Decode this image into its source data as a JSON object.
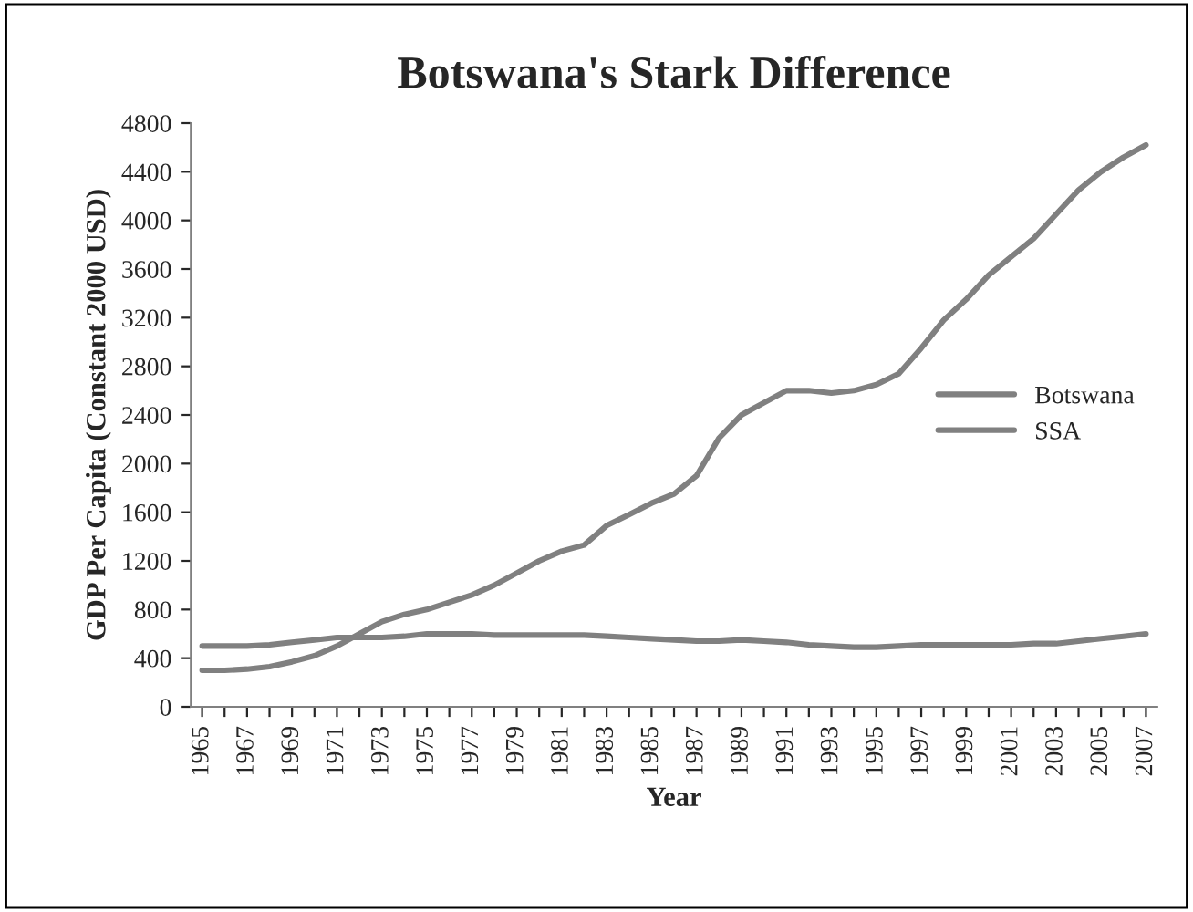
{
  "chart_data": {
    "type": "line",
    "title": "Botswana's Stark Difference",
    "xlabel": "Year",
    "ylabel": "GDP Per Capita (Constant 2000 USD)",
    "categories": [
      "1965",
      null,
      "1967",
      null,
      "1969",
      null,
      "1971",
      null,
      "1973",
      null,
      "1975",
      null,
      "1977",
      null,
      "1979",
      null,
      "1981",
      null,
      "1983",
      null,
      "1985",
      null,
      "1987",
      null,
      "1989",
      null,
      "1991",
      null,
      "1993",
      null,
      "1995",
      null,
      "1997",
      null,
      "1999",
      null,
      "2001",
      null,
      "2003",
      null,
      "2005",
      null,
      "2007"
    ],
    "series": [
      {
        "name": "Botswana",
        "color": "#808080",
        "values": [
          300,
          300,
          310,
          330,
          370,
          420,
          500,
          600,
          700,
          760,
          800,
          860,
          920,
          1000,
          1100,
          1200,
          1280,
          1330,
          1490,
          1580,
          1675,
          1750,
          1900,
          2210,
          2400,
          2500,
          2600,
          2600,
          2580,
          2600,
          2650,
          2740,
          2950,
          3180,
          3350,
          3550,
          3700,
          3850,
          4050,
          4250,
          4400,
          4520,
          4620
        ]
      },
      {
        "name": "SSA",
        "color": "#808080",
        "values": [
          500,
          500,
          500,
          510,
          530,
          550,
          570,
          570,
          570,
          580,
          600,
          600,
          600,
          590,
          590,
          590,
          590,
          590,
          580,
          570,
          560,
          550,
          540,
          540,
          550,
          540,
          530,
          510,
          500,
          490,
          490,
          500,
          510,
          510,
          510,
          510,
          510,
          520,
          520,
          540,
          560,
          580,
          600
        ]
      }
    ],
    "ylim": [
      0,
      4800
    ],
    "yticks": [
      0,
      400,
      800,
      1200,
      1600,
      2000,
      2400,
      2800,
      3200,
      3600,
      4000,
      4400,
      4800
    ],
    "grid": false,
    "legend": "right",
    "marker": "none",
    "line_style": "solid"
  }
}
